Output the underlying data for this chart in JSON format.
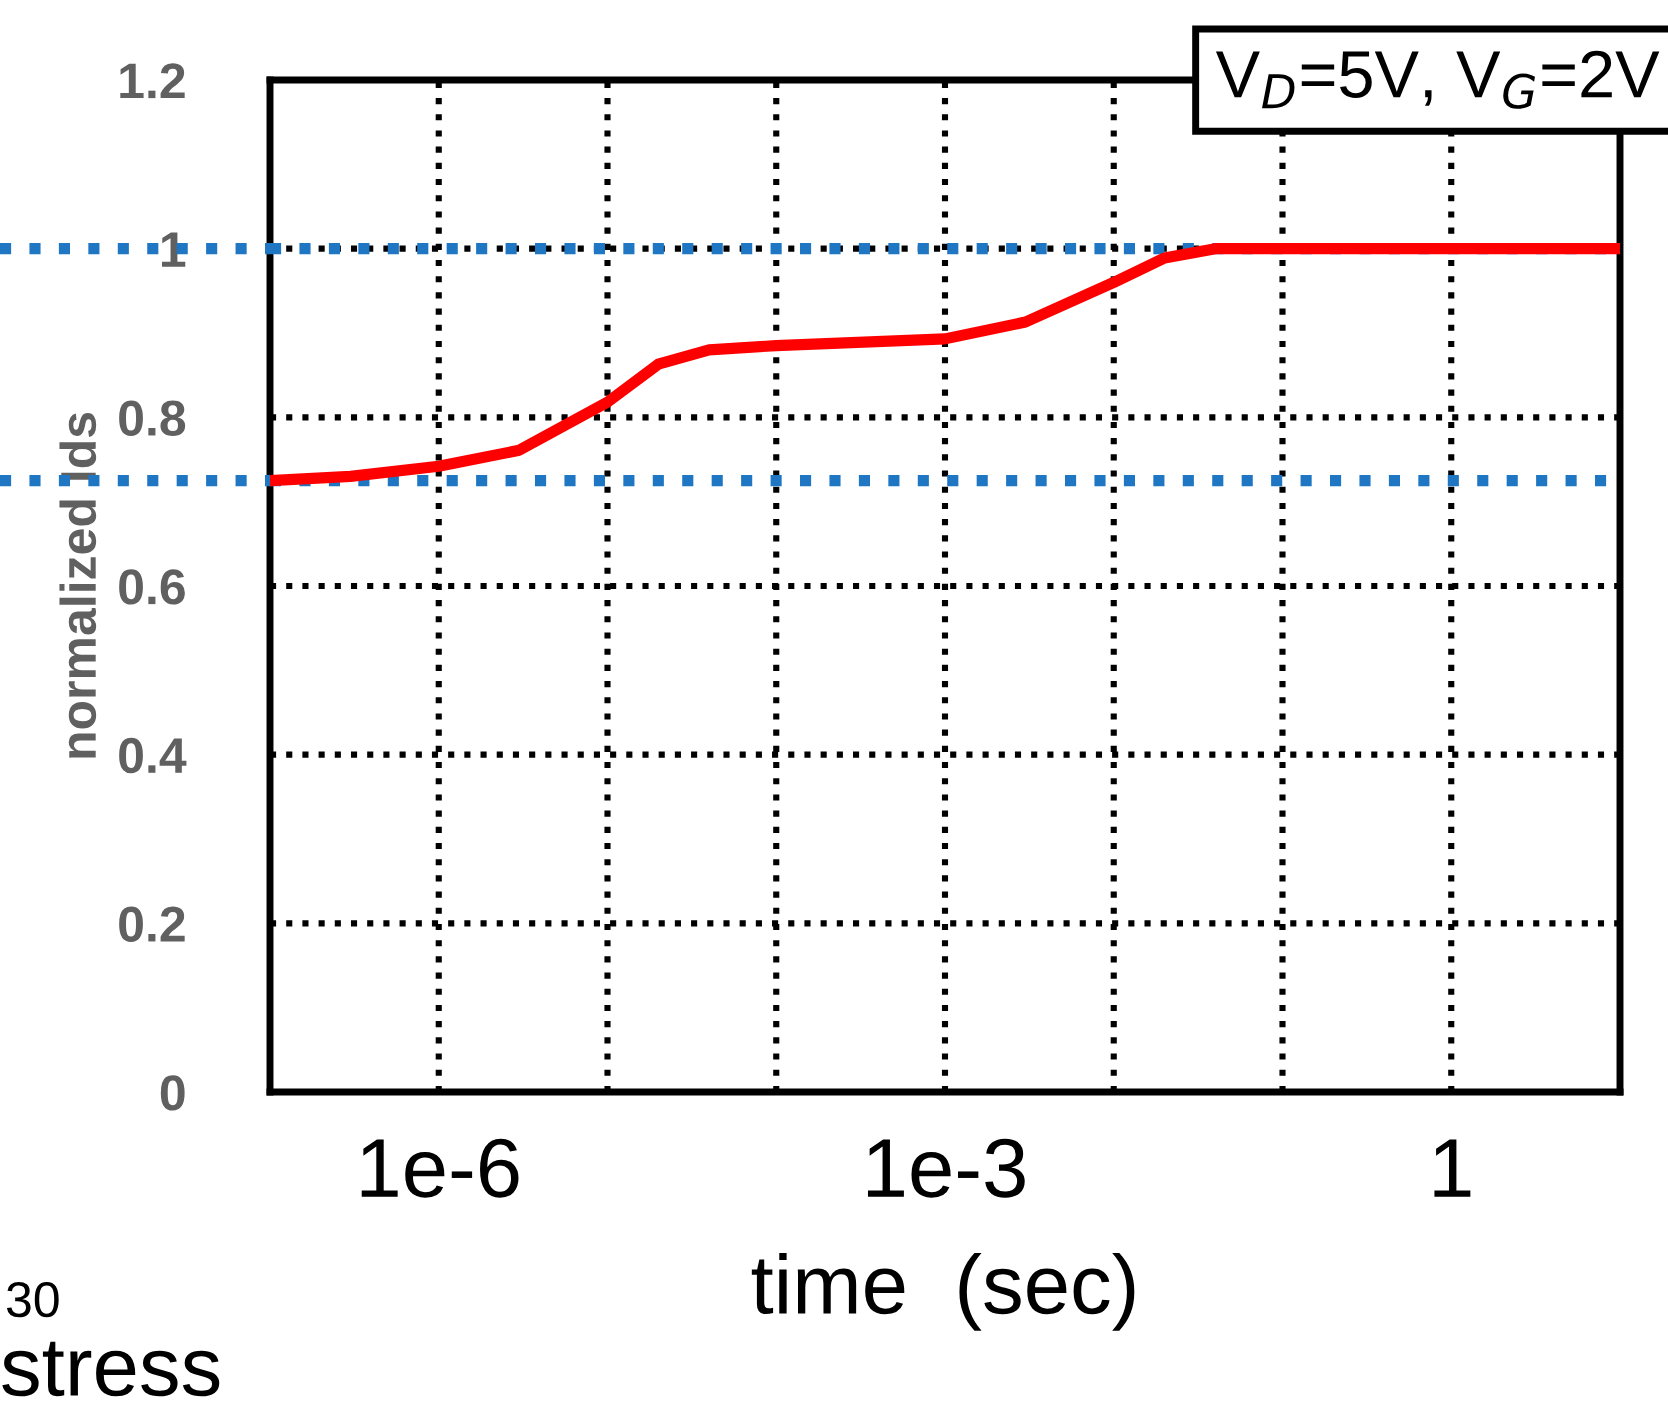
{
  "chart_data": {
    "type": "line",
    "xlabel": "time  (sec)",
    "ylabel": "normalized Ids",
    "log": "x",
    "grid": true,
    "marker": "none",
    "line_style": "solid",
    "xlim": [
      1e-07,
      10
    ],
    "xticks": [
      {
        "value": 1e-06,
        "label": "1e-6"
      },
      {
        "value": 1e-05,
        "label": null
      },
      {
        "value": 0.0001,
        "label": null
      },
      {
        "value": 0.001,
        "label": "1e-3"
      },
      {
        "value": 0.01,
        "label": null
      },
      {
        "value": 0.1,
        "label": null
      },
      1
    ],
    "ylim": [
      0,
      1.2
    ],
    "yticks": [
      0,
      0.2,
      0.4,
      0.6,
      0.8,
      1,
      1.2
    ],
    "series": [
      {
        "color": "#ff0000",
        "x": [
          1e-07,
          3e-07,
          1e-06,
          3e-06,
          1e-05,
          2e-05,
          4e-05,
          0.0001,
          0.001,
          0.003,
          0.01,
          0.02,
          0.04,
          0.1,
          1,
          10
        ],
        "values": [
          0.725,
          0.73,
          0.742,
          0.761,
          0.818,
          0.863,
          0.88,
          0.885,
          0.893,
          0.913,
          0.96,
          0.989,
          1.0,
          1.0,
          1.0,
          1.0
        ]
      }
    ],
    "ref_lines": [
      {
        "axis": "y",
        "value": 1,
        "color": "#1f77c4",
        "line_style": "dotted"
      },
      {
        "axis": "y",
        "value": 0.725,
        "color": "#1f77c4",
        "line_style": "dotted"
      }
    ],
    "annotations": [
      "V$_{D}$=5V, V$_{G}$=2V",
      "30",
      "stress"
    ]
  }
}
